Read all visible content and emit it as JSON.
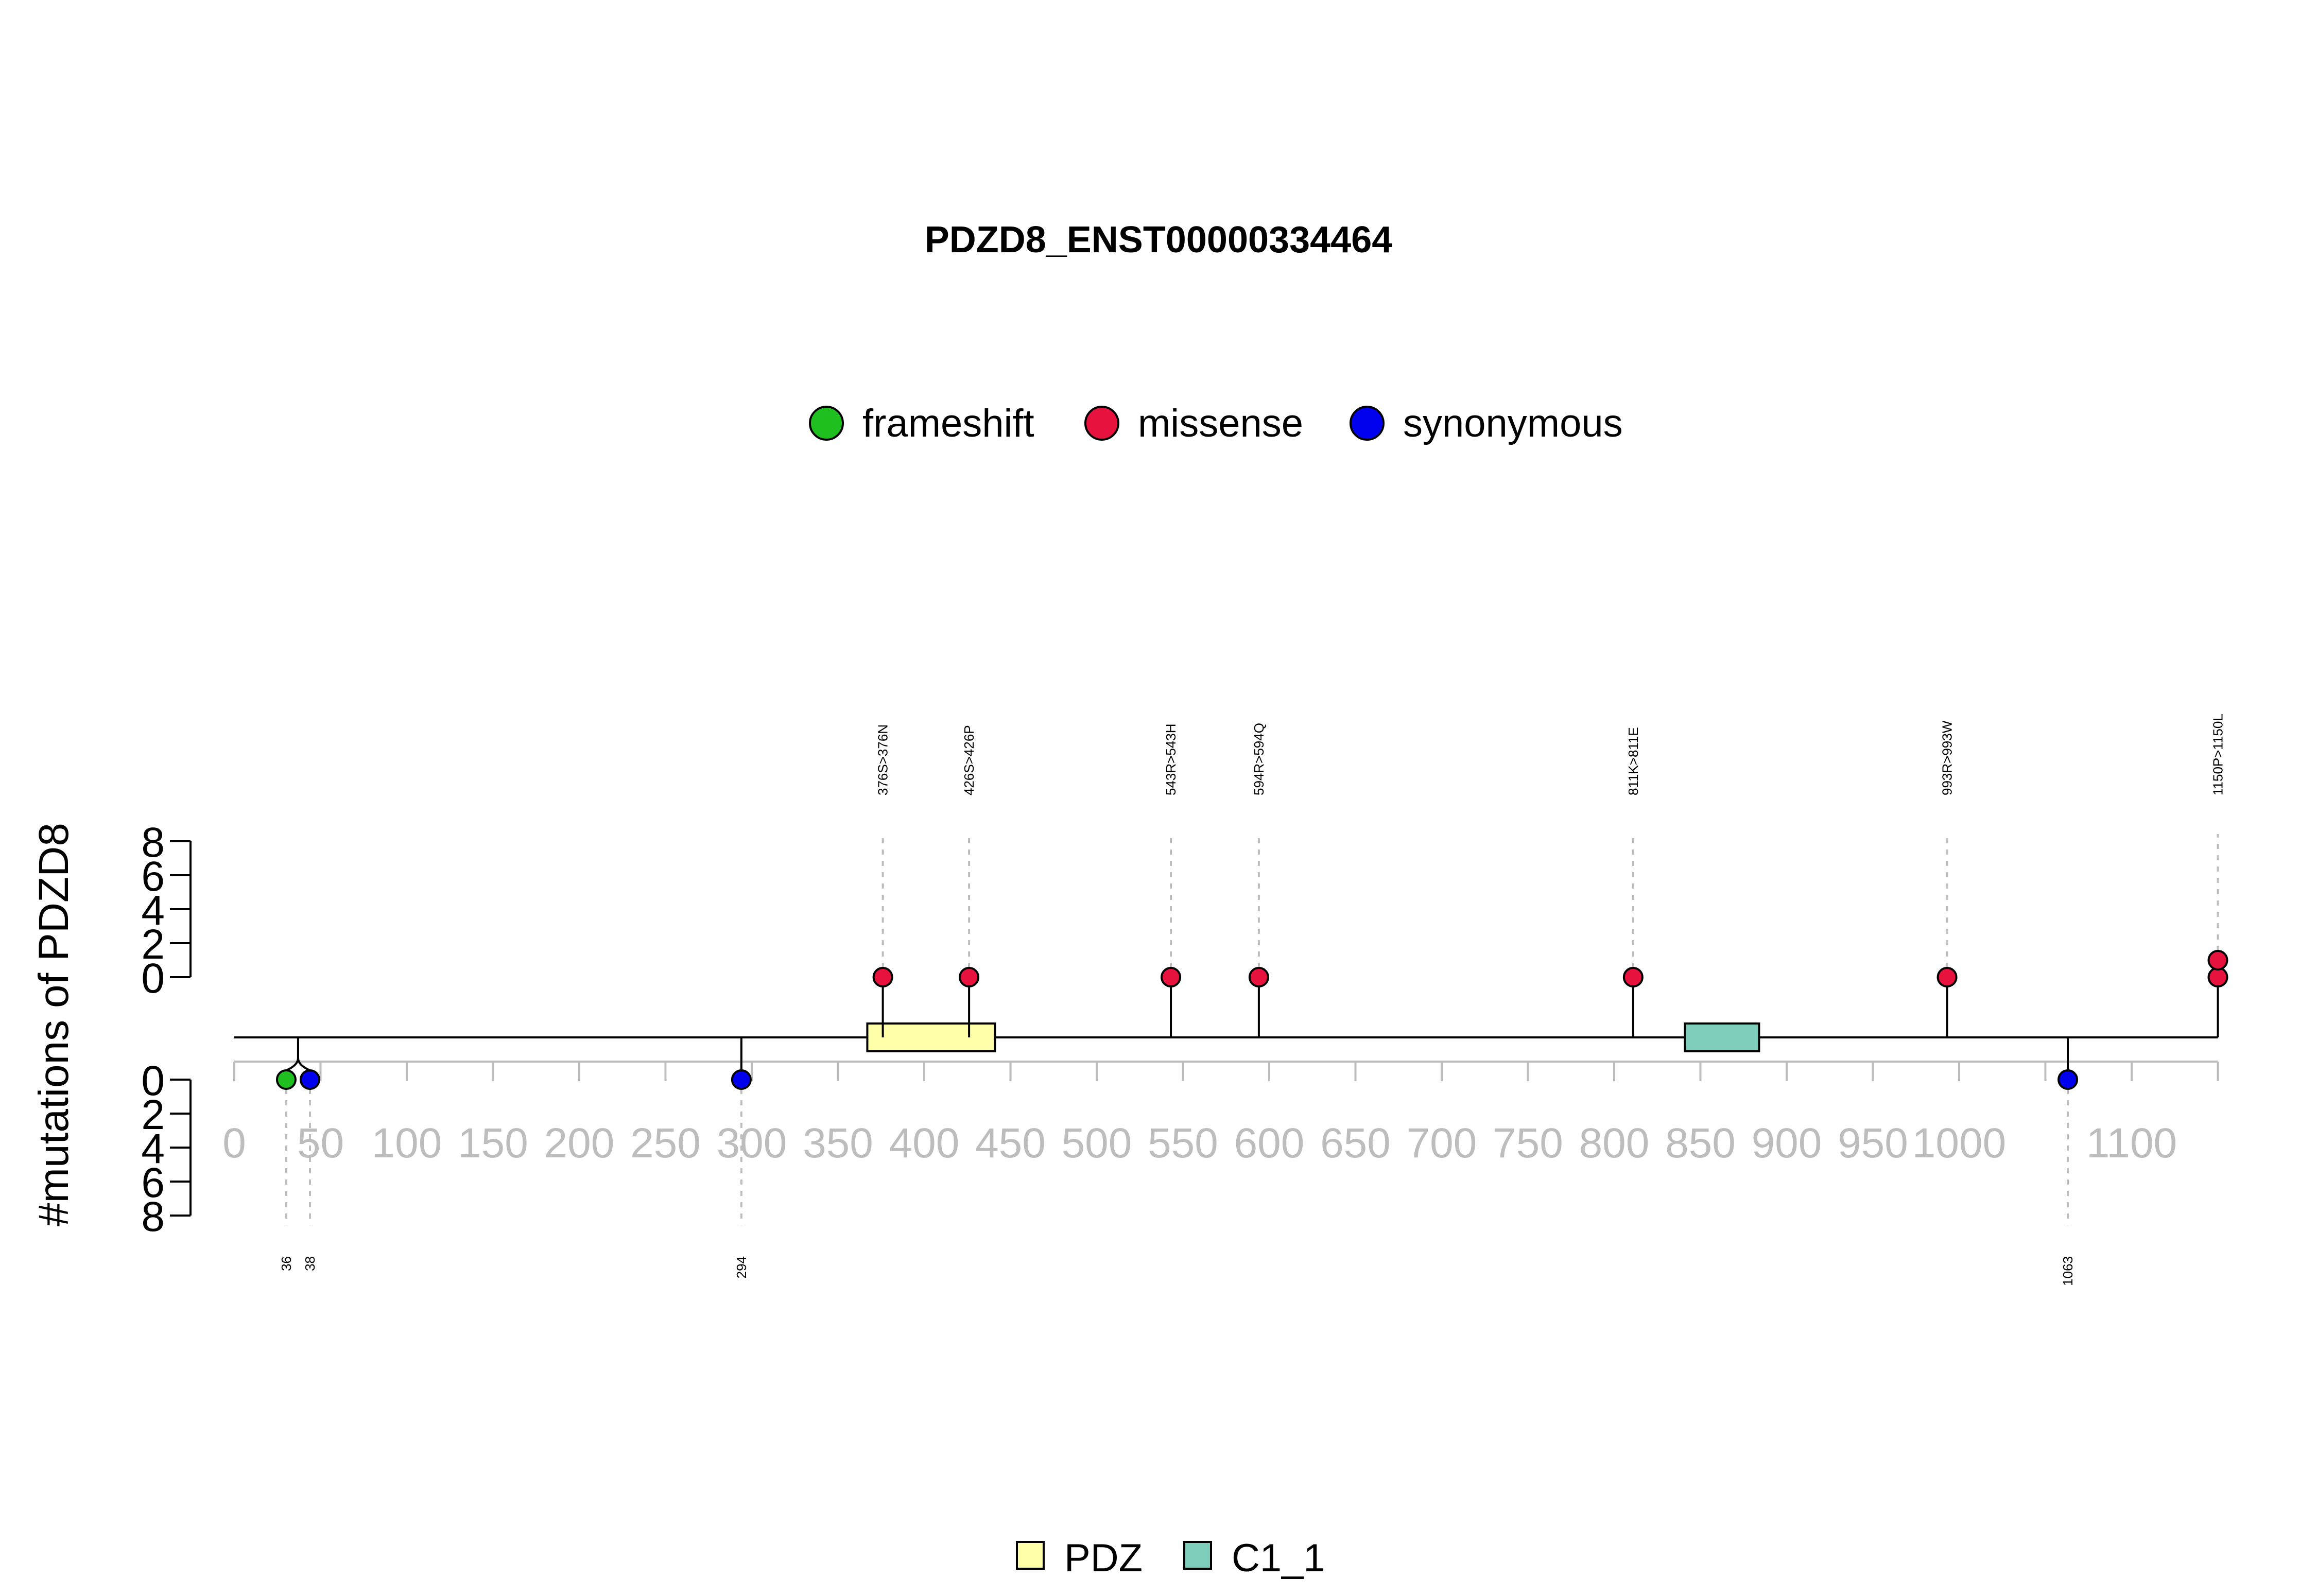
{
  "chart_data": {
    "type": "lollipop",
    "title": "PDZD8_ENST00000334464",
    "ylabel": "#mutations of PDZD8",
    "protein_length": 1150,
    "x_ticks": [
      0,
      50,
      100,
      150,
      200,
      250,
      300,
      350,
      400,
      450,
      500,
      550,
      600,
      650,
      700,
      750,
      800,
      850,
      900,
      950,
      1000,
      1100
    ],
    "x_tick_labels": [
      "0",
      "50",
      "100",
      "150",
      "200",
      "250",
      "300",
      "350",
      "400",
      "450",
      "500",
      "550",
      "600",
      "650",
      "700",
      "750",
      "800",
      "850",
      "900",
      "950",
      "1000",
      "1100"
    ],
    "y_ticks": [
      0,
      2,
      4,
      6,
      8
    ],
    "y_tick_labels": [
      "0",
      "2",
      "4",
      "6",
      "8"
    ],
    "ylim": [
      0,
      8
    ],
    "mutation_legend": [
      {
        "name": "frameshift",
        "color": "#1fbf1f"
      },
      {
        "name": "missense",
        "color": "#e8123f"
      },
      {
        "name": "synonymous",
        "color": "#0000ee"
      }
    ],
    "domain_legend": [
      {
        "name": "PDZ",
        "color": "#ffffaa"
      },
      {
        "name": "C1_1",
        "color": "#7fcdbb"
      }
    ],
    "domains": [
      {
        "name": "PDZ",
        "start": 367,
        "end": 441,
        "color": "#ffffaa"
      },
      {
        "name": "C1_1",
        "start": 841,
        "end": 884,
        "color": "#7fcdbb"
      }
    ],
    "mutations_top": [
      {
        "label": "376S>376N",
        "position": 376,
        "count": 1,
        "type": "missense"
      },
      {
        "label": "426S>426P",
        "position": 426,
        "count": 1,
        "type": "missense"
      },
      {
        "label": "543R>543H",
        "position": 543,
        "count": 1,
        "type": "missense"
      },
      {
        "label": "594R>594Q",
        "position": 594,
        "count": 1,
        "type": "missense"
      },
      {
        "label": "811K>811E",
        "position": 811,
        "count": 1,
        "type": "missense"
      },
      {
        "label": "993R>993W",
        "position": 993,
        "count": 1,
        "type": "missense"
      },
      {
        "label": "1150P>1150L",
        "position": 1150,
        "count": 2,
        "type": "missense"
      }
    ],
    "mutations_bottom": [
      {
        "label": "36",
        "position": 36,
        "count": 1,
        "type": "frameshift"
      },
      {
        "label": "38",
        "position": 38,
        "count": 1,
        "type": "synonymous"
      },
      {
        "label": "294",
        "position": 294,
        "count": 1,
        "type": "synonymous"
      },
      {
        "label": "1063",
        "position": 1063,
        "count": 1,
        "type": "synonymous"
      }
    ]
  }
}
